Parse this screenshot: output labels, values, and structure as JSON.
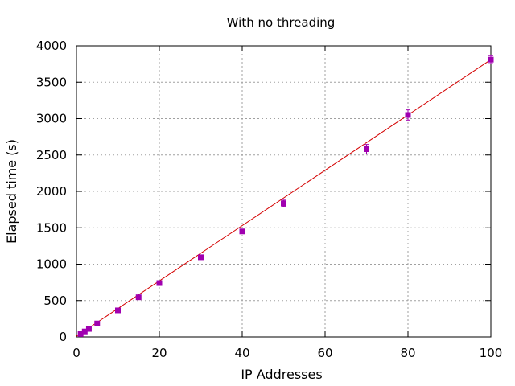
{
  "chart_data": {
    "type": "scatter",
    "title": "With no threading",
    "xlabel": "IP Addresses",
    "ylabel": "Elapsed time (s)",
    "xlim": [
      0,
      100
    ],
    "ylim": [
      0,
      4000
    ],
    "xticks": [
      0,
      20,
      40,
      60,
      80,
      100
    ],
    "yticks": [
      0,
      500,
      1000,
      1500,
      2000,
      2500,
      3000,
      3500,
      4000
    ],
    "grid": true,
    "legend": "none",
    "colors": {
      "points": "#a000b0",
      "fit_line": "#d40000",
      "grid": "#a0a0a0"
    },
    "series": [
      {
        "x": [
          1,
          2,
          3,
          5,
          10,
          15,
          20,
          30,
          40,
          50,
          70,
          80,
          100
        ],
        "y": [
          40,
          75,
          110,
          185,
          365,
          545,
          740,
          1095,
          1450,
          1835,
          2580,
          3050,
          3810
        ],
        "error": [
          8,
          8,
          10,
          12,
          15,
          18,
          20,
          25,
          30,
          45,
          65,
          70,
          55
        ]
      }
    ],
    "fit_line": {
      "x": [
        0,
        100
      ],
      "y": [
        10,
        3810
      ]
    }
  }
}
